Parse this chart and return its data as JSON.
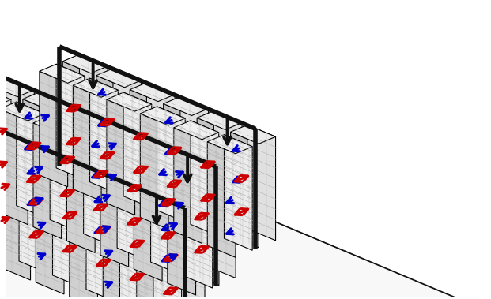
{
  "fig_width": 6.21,
  "fig_height": 3.79,
  "dpi": 100,
  "bg_color": "#ffffff",
  "hot_color": "#cc0000",
  "cold_color": "#0000cc",
  "tray_color": "#111111",
  "floor_color": "#f8f8f8",
  "rack_front_light": "#f0f0f0",
  "rack_front_dark": "#d8d8d8",
  "rack_side_light": "#c8c8c8",
  "rack_side_dark": "#b0b0b0",
  "rack_top_color": "#e8e8e8",
  "rack_edge": "#000000"
}
